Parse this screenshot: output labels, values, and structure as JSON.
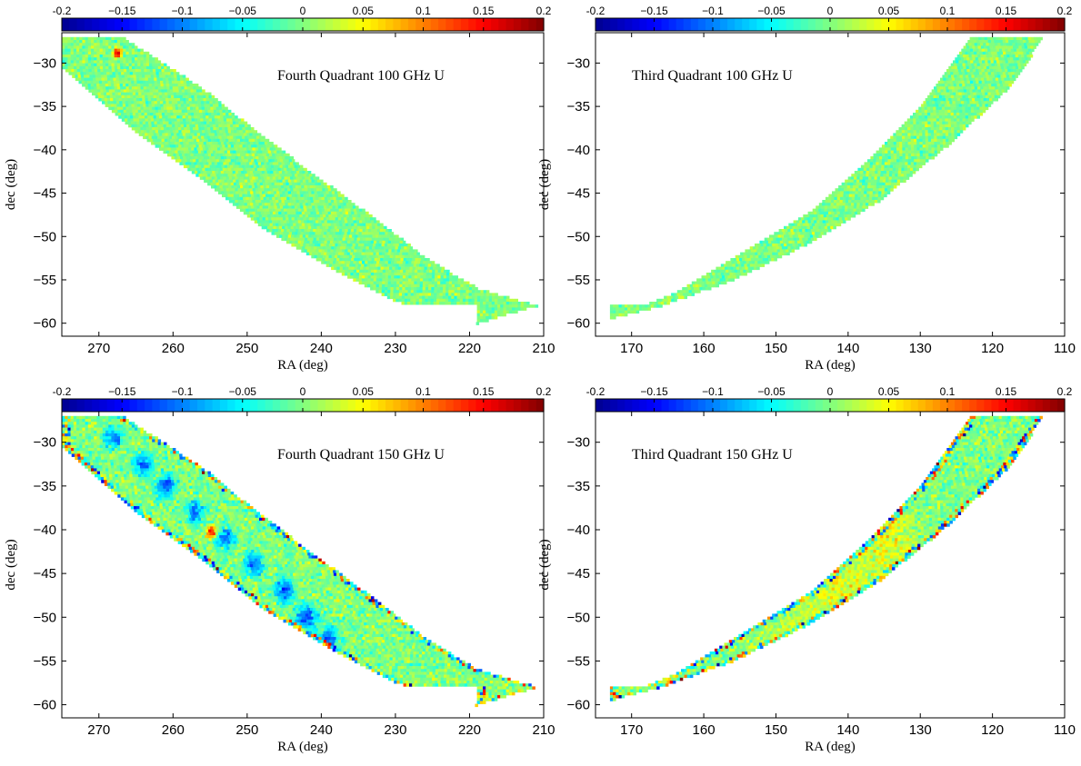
{
  "colorbar": {
    "min": -0.2,
    "max": 0.2,
    "ticks": [
      -0.2,
      -0.15,
      -0.1,
      -0.05,
      0,
      0.05,
      0.1,
      0.15,
      0.2
    ],
    "tick_labels": [
      "-0.2",
      "−0.15",
      "−0.1",
      "−0.05",
      "0",
      "0.05",
      "0.1",
      "0.15",
      "0.2"
    ],
    "stops": [
      "#00008f",
      "#0000ff",
      "#0080ff",
      "#00ffff",
      "#80ff80",
      "#ffff00",
      "#ff8000",
      "#ff0000",
      "#800000"
    ]
  },
  "chart_data": [
    {
      "type": "heatmap",
      "title": "Fourth Quadrant 100 GHz U",
      "xlabel": "RA (deg)",
      "ylabel": "dec (deg)",
      "xlim": [
        275,
        210
      ],
      "ylim": [
        -61.5,
        -26.5
      ],
      "xticks": [
        270,
        260,
        250,
        240,
        230,
        220,
        210
      ],
      "yticks": [
        -30,
        -35,
        -40,
        -45,
        -50,
        -55,
        -60
      ],
      "band": {
        "outer": [
          [
            267,
            -27
          ],
          [
            256,
            -33
          ],
          [
            248,
            -38.5
          ],
          [
            240,
            -43.5
          ],
          [
            232,
            -48.5
          ],
          [
            226,
            -52.5
          ],
          [
            219,
            -56
          ],
          [
            211,
            -58
          ]
        ],
        "inner": [
          [
            275,
            -30.5
          ],
          [
            265,
            -38
          ],
          [
            256,
            -43.5
          ],
          [
            248,
            -49
          ],
          [
            238,
            -54
          ],
          [
            230,
            -57.5
          ],
          [
            219,
            -60
          ]
        ]
      },
      "mean": 0.0,
      "spread": 0.06,
      "edge_noise": false,
      "features": [
        {
          "ra": 267.5,
          "dec": -28.8,
          "value": 0.19,
          "r": 0.4
        }
      ]
    },
    {
      "type": "heatmap",
      "title": "Third Quadrant 100 GHz U",
      "xlabel": "RA (deg)",
      "ylabel": "dec (deg)",
      "xlim": [
        175,
        110
      ],
      "ylim": [
        -61.5,
        -26.5
      ],
      "xticks": [
        170,
        160,
        150,
        140,
        130,
        120,
        110
      ],
      "yticks": [
        -30,
        -35,
        -40,
        -45,
        -50,
        -55,
        -60
      ],
      "band": {
        "outer": [
          [
            113,
            -27
          ],
          [
            118,
            -33
          ],
          [
            127,
            -40
          ],
          [
            136,
            -46
          ],
          [
            146,
            -51
          ],
          [
            156,
            -55
          ],
          [
            166,
            -58
          ]
        ],
        "inner": [
          [
            123,
            -27
          ],
          [
            130,
            -35
          ],
          [
            137,
            -41
          ],
          [
            145,
            -47
          ],
          [
            155,
            -52
          ],
          [
            164,
            -56.5
          ],
          [
            173,
            -59.5
          ]
        ]
      },
      "mean": 0.0,
      "spread": 0.06,
      "edge_noise": false,
      "features": []
    },
    {
      "type": "heatmap",
      "title": "Fourth Quadrant 150 GHz U",
      "xlabel": "RA (deg)",
      "ylabel": "dec (deg)",
      "xlim": [
        275,
        210
      ],
      "ylim": [
        -61.5,
        -26.5
      ],
      "xticks": [
        270,
        260,
        250,
        240,
        230,
        220,
        210
      ],
      "yticks": [
        -30,
        -35,
        -40,
        -45,
        -50,
        -55,
        -60
      ],
      "band": {
        "outer": [
          [
            267,
            -27
          ],
          [
            256,
            -33
          ],
          [
            248,
            -38.5
          ],
          [
            240,
            -43.5
          ],
          [
            232,
            -48.5
          ],
          [
            226,
            -52.5
          ],
          [
            219,
            -56
          ],
          [
            211,
            -58
          ]
        ],
        "inner": [
          [
            275,
            -30.5
          ],
          [
            265,
            -38
          ],
          [
            256,
            -43.5
          ],
          [
            248,
            -49
          ],
          [
            238,
            -54
          ],
          [
            230,
            -57.5
          ],
          [
            219,
            -60
          ]
        ]
      },
      "mean": 0.0,
      "spread": 0.07,
      "edge_noise": true,
      "features": [
        {
          "ra": 268,
          "dec": -29.5,
          "value": -0.13,
          "r": 0.8
        },
        {
          "ra": 264,
          "dec": -32.5,
          "value": -0.13,
          "r": 0.9
        },
        {
          "ra": 261,
          "dec": -35,
          "value": -0.13,
          "r": 0.9
        },
        {
          "ra": 257,
          "dec": -38,
          "value": -0.12,
          "r": 0.9
        },
        {
          "ra": 253,
          "dec": -41,
          "value": -0.12,
          "r": 0.9
        },
        {
          "ra": 249,
          "dec": -44,
          "value": -0.12,
          "r": 0.9
        },
        {
          "ra": 245,
          "dec": -47,
          "value": -0.13,
          "r": 1.0
        },
        {
          "ra": 242,
          "dec": -50,
          "value": -0.14,
          "r": 1.0
        },
        {
          "ra": 239,
          "dec": -52.5,
          "value": -0.12,
          "r": 0.9
        },
        {
          "ra": 254.8,
          "dec": -40.3,
          "value": 0.18,
          "r": 0.5
        }
      ]
    },
    {
      "type": "heatmap",
      "title": "Third Quadrant 150 GHz U",
      "xlabel": "RA (deg)",
      "ylabel": "dec (deg)",
      "xlim": [
        175,
        110
      ],
      "ylim": [
        -61.5,
        -26.5
      ],
      "xticks": [
        170,
        160,
        150,
        140,
        130,
        120,
        110
      ],
      "yticks": [
        -30,
        -35,
        -40,
        -45,
        -50,
        -55,
        -60
      ],
      "band": {
        "outer": [
          [
            113,
            -27
          ],
          [
            118,
            -33
          ],
          [
            127,
            -40
          ],
          [
            136,
            -46
          ],
          [
            146,
            -51
          ],
          [
            156,
            -55
          ],
          [
            166,
            -58
          ]
        ],
        "inner": [
          [
            123,
            -27
          ],
          [
            130,
            -35
          ],
          [
            137,
            -41
          ],
          [
            145,
            -47
          ],
          [
            155,
            -52
          ],
          [
            164,
            -56.5
          ],
          [
            173,
            -59.5
          ]
        ]
      },
      "mean": 0.0,
      "spread": 0.07,
      "edge_noise": true,
      "features": [
        {
          "ra": 135,
          "dec": -41,
          "value": 0.05,
          "r": 3.0
        },
        {
          "ra": 141,
          "dec": -48,
          "value": 0.05,
          "r": 3.5
        },
        {
          "ra": 147,
          "dec": -54,
          "value": 0.06,
          "r": 2.5
        },
        {
          "ra": 153,
          "dec": -56,
          "value": 0.06,
          "r": 2.0
        }
      ]
    }
  ]
}
